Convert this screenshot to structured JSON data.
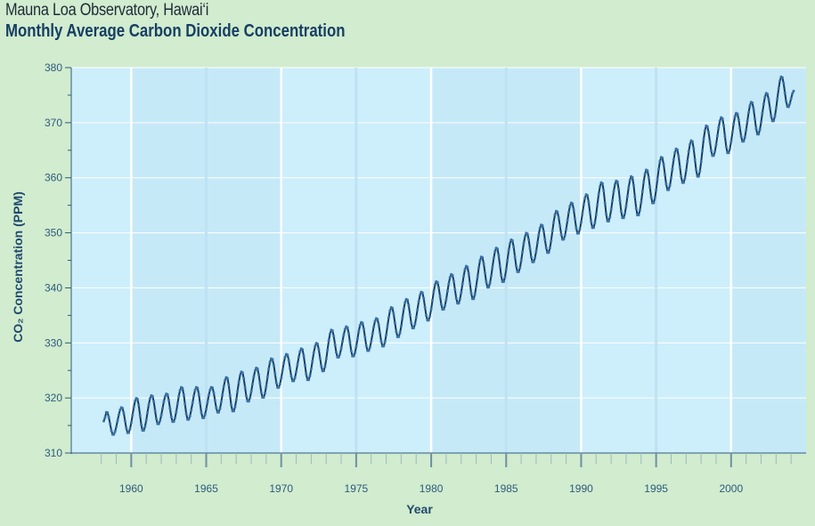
{
  "header": {
    "subtitle": "Mauna Loa Observatory, Hawai‘i",
    "title": "Monthly Average Carbon Dioxide Concentration"
  },
  "colors": {
    "page_background": "#d1ecce",
    "plot_background": "#cdeefb",
    "line": "#163e64",
    "marker": "#3a73a8",
    "grid": "#ffffff",
    "axis_text": "#2f5a7e"
  },
  "chart_data": {
    "type": "line",
    "xlabel": "Year",
    "ylabel": "CO₂ Concentration (PPM)",
    "xlim": [
      1956,
      2005
    ],
    "ylim": [
      310,
      380
    ],
    "x_ticks": [
      1960,
      1965,
      1970,
      1975,
      1980,
      1985,
      1990,
      1995,
      2000
    ],
    "x_tick_labels": [
      "1960",
      "1965",
      "1970",
      "1975",
      "1980",
      "1985",
      "1990",
      "1995",
      "2000"
    ],
    "y_ticks": [
      310,
      320,
      330,
      340,
      350,
      360,
      370,
      380
    ],
    "y_tick_labels": [
      "310",
      "320",
      "330",
      "340",
      "350",
      "360",
      "370",
      "380"
    ],
    "grid": {
      "horizontal": true,
      "vertical_decades": true,
      "shaded_alternate_decades": true
    },
    "legend": "none",
    "series": [
      {
        "sampling": "monthly",
        "start": "1958-03",
        "end": "2004-03",
        "seasonal_peak_month": "May",
        "seasonal_trough_month": "October",
        "annual_maxima": [
          [
            1958,
            317.5
          ],
          [
            1959,
            318.3
          ],
          [
            1960,
            320.0
          ],
          [
            1961,
            320.5
          ],
          [
            1962,
            320.8
          ],
          [
            1963,
            322.0
          ],
          [
            1964,
            322.0
          ],
          [
            1965,
            322.0
          ],
          [
            1966,
            323.8
          ],
          [
            1967,
            324.8
          ],
          [
            1968,
            325.5
          ],
          [
            1969,
            327.2
          ],
          [
            1970,
            328.0
          ],
          [
            1971,
            329.0
          ],
          [
            1972,
            330.0
          ],
          [
            1973,
            332.4
          ],
          [
            1974,
            333.0
          ],
          [
            1975,
            333.8
          ],
          [
            1976,
            334.5
          ],
          [
            1977,
            336.5
          ],
          [
            1978,
            338.0
          ],
          [
            1979,
            339.3
          ],
          [
            1980,
            341.2
          ],
          [
            1981,
            342.5
          ],
          [
            1982,
            344.0
          ],
          [
            1983,
            345.7
          ],
          [
            1984,
            347.3
          ],
          [
            1985,
            348.8
          ],
          [
            1986,
            350.0
          ],
          [
            1987,
            351.5
          ],
          [
            1988,
            354.0
          ],
          [
            1989,
            355.5
          ],
          [
            1990,
            357.0
          ],
          [
            1991,
            359.2
          ],
          [
            1992,
            359.5
          ],
          [
            1993,
            360.3
          ],
          [
            1994,
            361.5
          ],
          [
            1995,
            363.8
          ],
          [
            1996,
            365.3
          ],
          [
            1997,
            366.8
          ],
          [
            1998,
            369.5
          ],
          [
            1999,
            371.0
          ],
          [
            2000,
            371.8
          ],
          [
            2001,
            373.8
          ],
          [
            2002,
            375.4
          ],
          [
            2003,
            378.4
          ]
        ],
        "annual_minima": [
          [
            1958,
            313.3
          ],
          [
            1959,
            313.6
          ],
          [
            1960,
            314.0
          ],
          [
            1961,
            315.2
          ],
          [
            1962,
            315.6
          ],
          [
            1963,
            316.0
          ],
          [
            1964,
            316.3
          ],
          [
            1965,
            317.3
          ],
          [
            1966,
            317.5
          ],
          [
            1967,
            319.3
          ],
          [
            1968,
            320.0
          ],
          [
            1969,
            321.8
          ],
          [
            1970,
            323.0
          ],
          [
            1971,
            323.2
          ],
          [
            1972,
            324.8
          ],
          [
            1973,
            327.3
          ],
          [
            1974,
            327.5
          ],
          [
            1975,
            328.5
          ],
          [
            1976,
            329.3
          ],
          [
            1977,
            331.0
          ],
          [
            1978,
            332.6
          ],
          [
            1979,
            334.0
          ],
          [
            1980,
            336.0
          ],
          [
            1981,
            337.1
          ],
          [
            1982,
            337.9
          ],
          [
            1983,
            340.0
          ],
          [
            1984,
            341.0
          ],
          [
            1985,
            342.8
          ],
          [
            1986,
            344.6
          ],
          [
            1987,
            346.3
          ],
          [
            1988,
            348.7
          ],
          [
            1989,
            349.8
          ],
          [
            1990,
            350.8
          ],
          [
            1991,
            352.0
          ],
          [
            1992,
            352.6
          ],
          [
            1993,
            353.1
          ],
          [
            1994,
            355.3
          ],
          [
            1995,
            357.7
          ],
          [
            1996,
            359.0
          ],
          [
            1997,
            360.1
          ],
          [
            1998,
            363.9
          ],
          [
            1999,
            364.4
          ],
          [
            2000,
            366.5
          ],
          [
            2001,
            367.8
          ],
          [
            2002,
            370.2
          ],
          [
            2003,
            372.8
          ]
        ],
        "last_value": [
          2004.2,
          375.8
        ]
      }
    ]
  }
}
